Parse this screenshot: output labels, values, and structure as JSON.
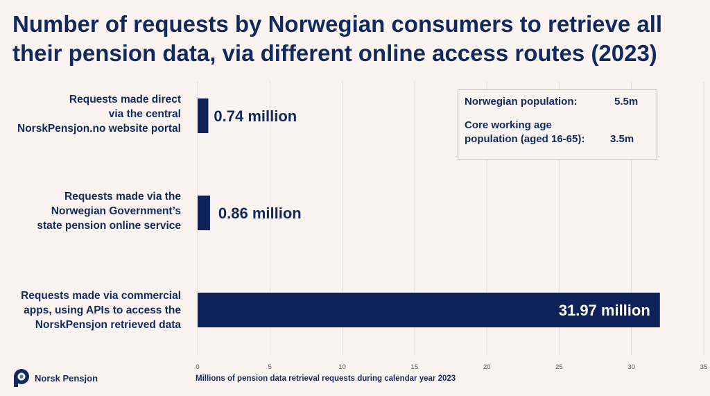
{
  "title_lines": [
    "Number of requests by Norwegian consumers to retrieve all",
    "their pension data, via different online access routes (2023)"
  ],
  "categories": [
    {
      "lines": [
        "Requests made direct",
        "via the central",
        "NorskPensjon.no website portal"
      ]
    },
    {
      "lines": [
        "Requests made via the",
        "Norwegian Government’s",
        "state pension online service"
      ]
    },
    {
      "lines": [
        "Requests made via commercial",
        "apps, using APIs to access the",
        "NorskPensjon retrieved data"
      ]
    }
  ],
  "info_box": {
    "population_label": "Norwegian population:",
    "population_value": "5.5m",
    "working_label_line1": "Core working age",
    "working_label_line2": "population (aged 16-65):",
    "working_value": "3.5m"
  },
  "logo_text": "Norsk Pensjon",
  "colors": {
    "bar": "#0e2259",
    "text": "#102a5e",
    "background": "#fbf3ef",
    "grid": "#dedede"
  },
  "chart_data": {
    "type": "bar",
    "orientation": "horizontal",
    "categories": [
      "Requests made direct via the central NorskPensjon.no website portal",
      "Requests made via the Norwegian Government’s state pension online service",
      "Requests made via commercial apps, using APIs to access the NorskPensjon retrieved data"
    ],
    "values": [
      0.74,
      0.86,
      31.97
    ],
    "data_labels": [
      "0.74 million",
      "0.86 million",
      "31.97 million"
    ],
    "xlabel": "Millions of pension data retrieval requests during calendar year 2023",
    "xlim": [
      0,
      35
    ],
    "xticks": [
      0,
      5,
      10,
      15,
      20,
      25,
      30,
      35
    ],
    "grid": "vertical",
    "legend": "none"
  }
}
